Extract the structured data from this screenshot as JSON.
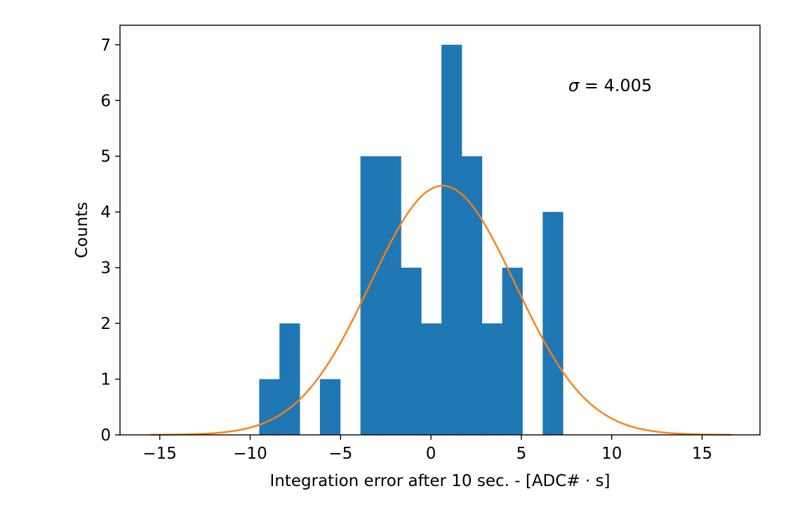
{
  "chart_data": {
    "type": "bar",
    "subtype": "histogram",
    "title": "",
    "xlabel": "Integration error after 10 sec. - [ADC# · s]",
    "ylabel": "Counts",
    "xlim": [
      -17.2,
      18.2
    ],
    "ylim": [
      0,
      7.35
    ],
    "xticks": [
      -15,
      -10,
      -5,
      0,
      5,
      10,
      15
    ],
    "xtick_labels": [
      "−15",
      "−10",
      "−5",
      "0",
      "5",
      "10",
      "15"
    ],
    "yticks": [
      0,
      1,
      2,
      3,
      4,
      5,
      6,
      7
    ],
    "ytick_labels": [
      "0",
      "1",
      "2",
      "3",
      "4",
      "5",
      "6",
      "7"
    ],
    "bin_width": 1.12,
    "bins": [
      {
        "x0": -9.5,
        "count": 1
      },
      {
        "x0": -8.38,
        "count": 2
      },
      {
        "x0": -7.26,
        "count": 0
      },
      {
        "x0": -6.14,
        "count": 1
      },
      {
        "x0": -5.02,
        "count": 0
      },
      {
        "x0": -3.9,
        "count": 5
      },
      {
        "x0": -2.78,
        "count": 5
      },
      {
        "x0": -1.66,
        "count": 3
      },
      {
        "x0": -0.54,
        "count": 2
      },
      {
        "x0": 0.58,
        "count": 7
      },
      {
        "x0": 1.7,
        "count": 5
      },
      {
        "x0": 2.82,
        "count": 2
      },
      {
        "x0": 3.94,
        "count": 3
      },
      {
        "x0": 5.06,
        "count": 0
      },
      {
        "x0": 6.18,
        "count": 4
      }
    ],
    "fit": {
      "type": "gaussian",
      "mu": 0.65,
      "sigma": 4.005,
      "amplitude": 4.47,
      "x_range": [
        -15.5,
        16.6
      ]
    },
    "annotation": {
      "symbol": "σ",
      "text": " = 4.005",
      "x": 7.6,
      "y": 6.28
    },
    "colors": {
      "bars": "#1f77b4",
      "fit_line": "#ff7f0e",
      "axes": "#000000"
    },
    "grid": false,
    "legend": "none"
  }
}
